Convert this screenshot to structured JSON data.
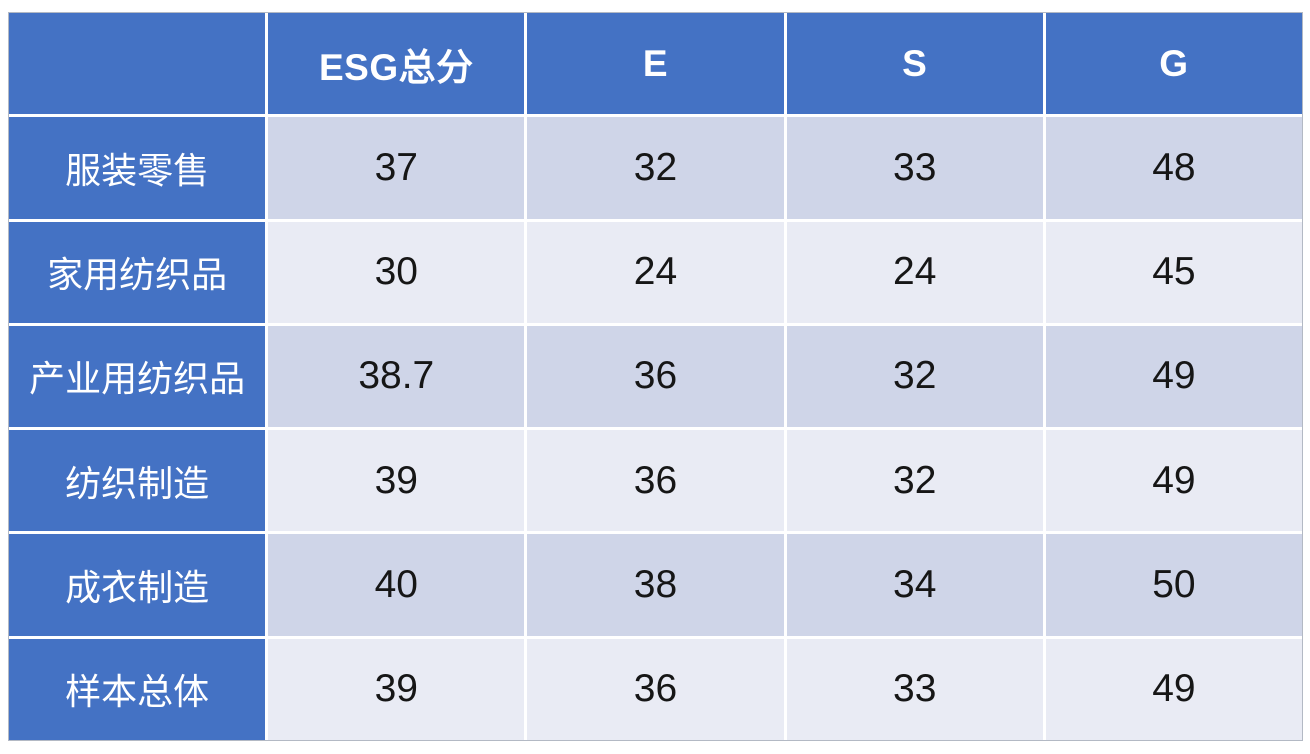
{
  "chart_data": {
    "type": "table",
    "title": "",
    "columns": [
      "",
      "ESG总分",
      "E",
      "S",
      "G"
    ],
    "rows": [
      {
        "label": "服装零售",
        "values": [
          "37",
          "32",
          "33",
          "48"
        ]
      },
      {
        "label": "家用纺织品",
        "values": [
          "30",
          "24",
          "24",
          "45"
        ]
      },
      {
        "label": "产业用纺织品",
        "values": [
          "38.7",
          "36",
          "32",
          "49"
        ]
      },
      {
        "label": "纺织制造",
        "values": [
          "39",
          "36",
          "32",
          "49"
        ]
      },
      {
        "label": "成衣制造",
        "values": [
          "40",
          "38",
          "34",
          "50"
        ]
      },
      {
        "label": "样本总体",
        "values": [
          "39",
          "36",
          "33",
          "49"
        ]
      }
    ],
    "layout_hints": {
      "header_row": true,
      "header_column": true,
      "banded_rows": true
    }
  },
  "table": {
    "corner": "",
    "headers": [
      "ESG总分",
      "E",
      "S",
      "G"
    ],
    "rows": [
      {
        "label": "服装零售",
        "values": [
          "37",
          "32",
          "33",
          "48"
        ]
      },
      {
        "label": "家用纺织品",
        "values": [
          "30",
          "24",
          "24",
          "45"
        ]
      },
      {
        "label": "产业用纺织品",
        "values": [
          "38.7",
          "36",
          "32",
          "49"
        ]
      },
      {
        "label": "纺织制造",
        "values": [
          "39",
          "36",
          "32",
          "49"
        ]
      },
      {
        "label": "成衣制造",
        "values": [
          "40",
          "38",
          "34",
          "50"
        ]
      },
      {
        "label": "样本总体",
        "values": [
          "39",
          "36",
          "33",
          "49"
        ]
      }
    ],
    "colors": {
      "header_bg": "#4472C4",
      "band_dark": "#CFD5E8",
      "band_light": "#E9EBF4",
      "gridline": "#FFFFFF",
      "header_text": "#FFFFFF",
      "value_text": "#161616"
    }
  }
}
